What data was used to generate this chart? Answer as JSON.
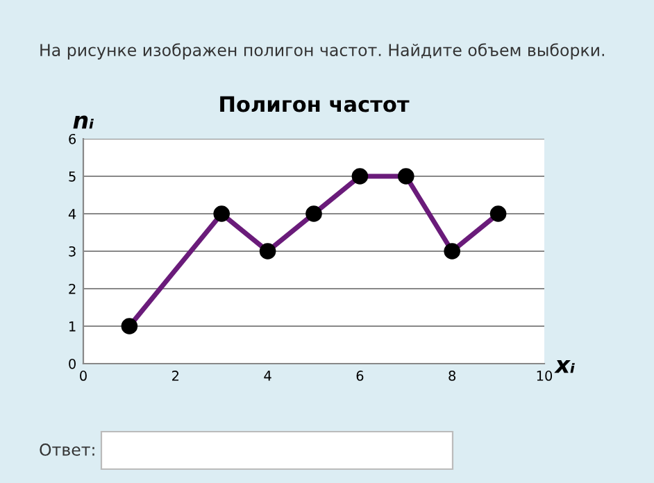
{
  "chart_data": {
    "type": "line",
    "title": "Полигон частот",
    "xlabel": "xᵢ",
    "ylabel": "nᵢ",
    "x": [
      1,
      3,
      4,
      5,
      6,
      7,
      8,
      9
    ],
    "series": [
      {
        "color": "#6a1b7a",
        "values": [
          1,
          4,
          3,
          4,
          5,
          5,
          3,
          4
        ]
      }
    ],
    "xlim": [
      0,
      10
    ],
    "xticks": [
      0,
      2,
      4,
      6,
      8,
      10
    ],
    "ylim": [
      0,
      6
    ],
    "yticks": [
      0,
      1,
      2,
      3,
      4,
      5,
      6
    ],
    "grid": "y",
    "marker": "circle",
    "line_style": "solid",
    "legend": false,
    "annotations": [
      "На рисунке изображен полигон частот. Найдите объем выборки.",
      "Ответ:"
    ]
  }
}
